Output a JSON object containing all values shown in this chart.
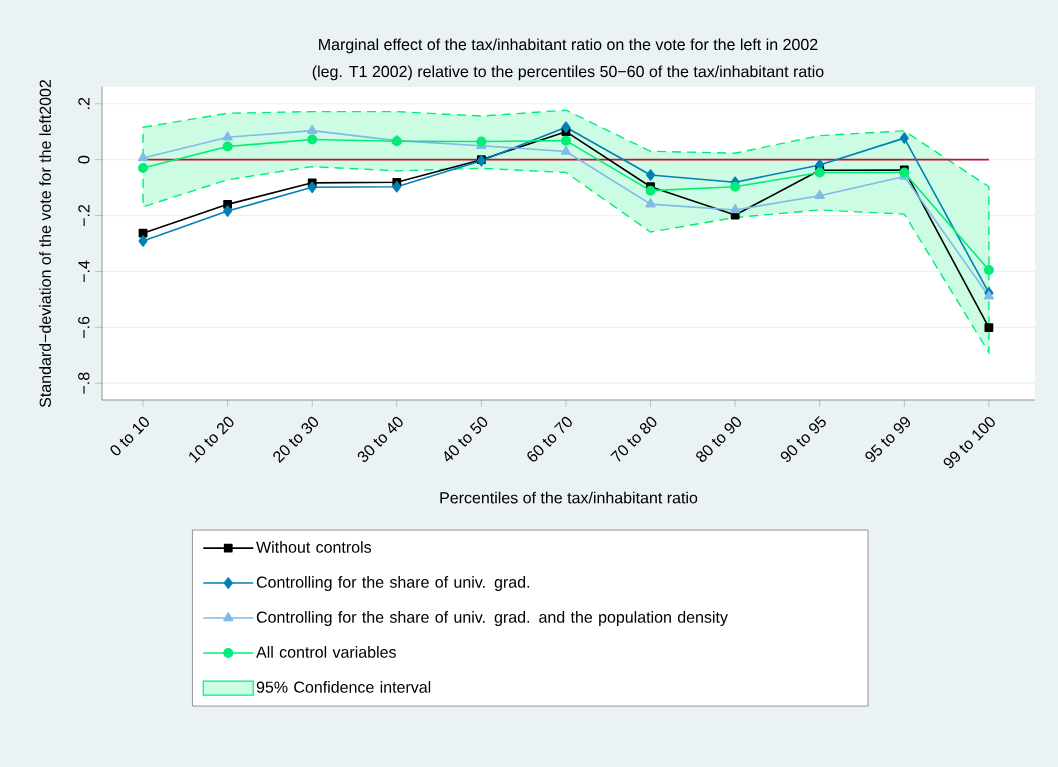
{
  "chart_data": {
    "type": "line",
    "title": "Marginal effect of the tax/inhabitant ratio on the vote for the left in 2002",
    "subtitle": "(leg. T1 2002) relative to the percentiles 50−60 of the tax/inhabitant ratio",
    "xlabel": "Percentiles of the tax/inhabitant ratio",
    "ylabel": "Standard−deviation of the vote for the left2002",
    "categories": [
      "0 to 10",
      "10 to 20",
      "20 to 30",
      "30 to 40",
      "40 to 50",
      "60 to 70",
      "70 to 80",
      "80 to 90",
      "90 to 95",
      "95 to 99",
      "99 to 100"
    ],
    "series": [
      {
        "name": "Without controls",
        "color": "#000000",
        "marker": "square",
        "values": [
          -0.263,
          -0.16,
          -0.083,
          -0.081,
          0.0,
          0.1,
          -0.097,
          -0.198,
          -0.038,
          -0.037,
          -0.601
        ]
      },
      {
        "name": "Controlling for the share of univ. grad.",
        "color": "#0080b4",
        "marker": "diamond",
        "values": [
          -0.291,
          -0.184,
          -0.099,
          -0.097,
          -0.004,
          0.116,
          -0.055,
          -0.081,
          -0.019,
          0.077,
          -0.477
        ]
      },
      {
        "name": "Controlling for the share of univ. grad. and the population density",
        "color": "#82b9e6",
        "marker": "triangle",
        "values": [
          0.006,
          0.08,
          0.104,
          0.068,
          0.05,
          0.029,
          -0.159,
          -0.18,
          -0.129,
          -0.06,
          -0.489
        ]
      },
      {
        "name": "All control variables",
        "color": "#00ee76",
        "marker": "circle",
        "values": [
          -0.03,
          0.047,
          0.072,
          0.066,
          0.065,
          0.068,
          -0.111,
          -0.097,
          -0.046,
          -0.046,
          -0.395
        ],
        "lower": [
          -0.169,
          -0.072,
          -0.025,
          -0.04,
          -0.031,
          -0.046,
          -0.259,
          -0.207,
          -0.18,
          -0.195,
          -0.69
        ],
        "upper": [
          0.116,
          0.166,
          0.172,
          0.172,
          0.156,
          0.177,
          0.03,
          0.023,
          0.086,
          0.103,
          -0.097
        ]
      }
    ],
    "annotations": [
      "95% Confidence interval"
    ],
    "ref_lines": [
      {
        "axis": "y",
        "value": 0,
        "color": "#c8102e"
      }
    ],
    "ylim": [
      -0.86,
      0.26
    ],
    "yticks": [
      {
        "value": -0.8,
        "label": "−.8"
      },
      {
        "value": -0.6,
        "label": "−.6"
      },
      {
        "value": -0.4,
        "label": "−.4"
      },
      {
        "value": -0.2,
        "label": "−.2"
      },
      {
        "value": 0,
        "label": "0"
      },
      {
        "value": 0.2,
        "label": ".2"
      }
    ],
    "grid": "y",
    "legend": "bottom"
  }
}
